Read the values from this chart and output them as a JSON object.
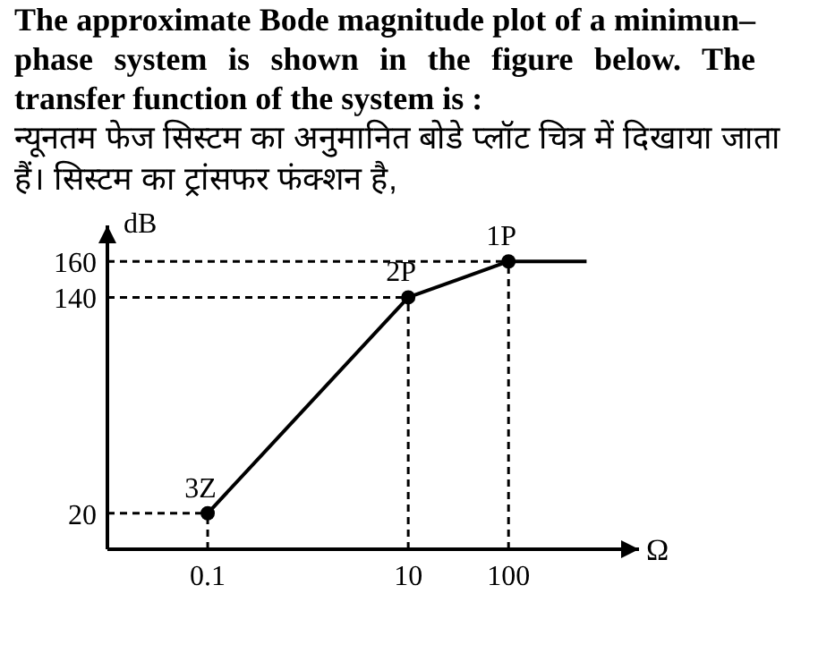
{
  "chart_data": {
    "type": "line",
    "title": "The approximate Bode magnitude plot of a minimun–phase system is shown in the figure below. The transfer function of the system is :",
    "subtitle": "न्यूनतम फेज सिस्टम का अनुमानित बोडे प्लॉट चित्र में दिखाया जाता हैं। सिस्टम का ट्रांसफर फंक्शन है,",
    "xlabel": "Ω",
    "ylabel": "dB",
    "log": "x",
    "xlim": [
      0.01,
      2000
    ],
    "xticks": [
      0.1,
      10,
      100
    ],
    "ylim": [
      0,
      180
    ],
    "yticks": [
      20,
      140,
      160
    ],
    "grid": false,
    "series": [
      {
        "color": "#000000",
        "x": [
          0.1,
          10,
          100
        ],
        "values": [
          20,
          140,
          160
        ],
        "marker": "circle",
        "line_style": "solid"
      },
      {
        "color": "#000000",
        "x": [
          100,
          600
        ],
        "values": [
          160,
          160
        ],
        "marker": "none",
        "line_style": "solid"
      }
    ],
    "ref_lines": [
      {
        "axis": "x",
        "value": 0.1,
        "line_style": "dashed",
        "color": "#000000"
      },
      {
        "axis": "x",
        "value": 10,
        "line_style": "dashed",
        "color": "#000000"
      },
      {
        "axis": "x",
        "value": 100,
        "line_style": "dashed",
        "color": "#000000"
      },
      {
        "axis": "y",
        "value": 20,
        "line_style": "dashed",
        "color": "#000000"
      },
      {
        "axis": "y",
        "value": 140,
        "line_style": "dashed",
        "color": "#000000"
      },
      {
        "axis": "y",
        "value": 160,
        "line_style": "dashed",
        "color": "#000000"
      }
    ],
    "annotations": [
      {
        "text": "3Z",
        "x": 0.1,
        "y": 20
      },
      {
        "text": "2P",
        "x": 10,
        "y": 140
      },
      {
        "text": "1P",
        "x": 100,
        "y": 160
      }
    ]
  }
}
